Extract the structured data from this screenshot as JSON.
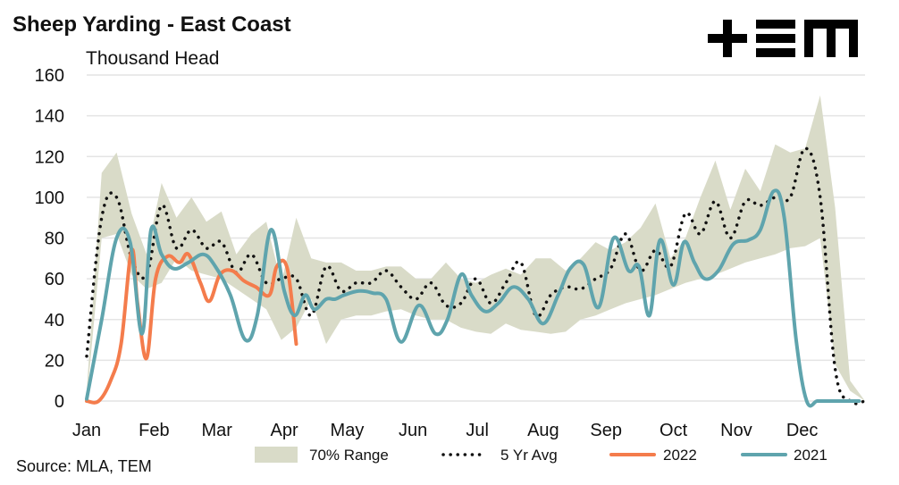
{
  "header": {
    "title": "Sheep Yarding - East Coast",
    "subtitle": "Thousand Head",
    "source": "Source: MLA, TEM",
    "logo_text": "+ΞM"
  },
  "colors": {
    "range": "#d9dbc8",
    "avg": "#111111",
    "y2022": "#f47c4c",
    "y2021": "#5fa4ad",
    "grid": "#e4e4e4"
  },
  "chart_data": {
    "type": "line",
    "title": "Sheep Yarding - East Coast",
    "ylabel": "Thousand Head",
    "xlabel": "",
    "ylim": [
      0,
      160
    ],
    "xlim": [
      0,
      52
    ],
    "yticks": [
      0,
      20,
      40,
      60,
      80,
      100,
      120,
      140,
      160
    ],
    "grid": true,
    "legend_position": "bottom",
    "month_labels": [
      "Jan",
      "Feb",
      "Mar",
      "Apr",
      "May",
      "Jun",
      "Jul",
      "Aug",
      "Sep",
      "Oct",
      "Nov",
      "Dec"
    ],
    "month_positions": [
      0,
      4.5,
      8.7,
      13.2,
      17.4,
      21.8,
      26.1,
      30.5,
      34.7,
      39.2,
      43.4,
      47.8
    ],
    "series": [
      {
        "name": "70% Range",
        "style": "band",
        "x": [
          0,
          1,
          2,
          3,
          4,
          5,
          6,
          7,
          8,
          9,
          10,
          11,
          12,
          13,
          14,
          15,
          16,
          17,
          18,
          19,
          20,
          21,
          22,
          23,
          24,
          25,
          26,
          27,
          28,
          29,
          30,
          31,
          32,
          33,
          34,
          35,
          36,
          37,
          38,
          39,
          40,
          41,
          42,
          43,
          44,
          45,
          46,
          47,
          48,
          49,
          50,
          51,
          52
        ],
        "lower": [
          0,
          80,
          82,
          62,
          55,
          58,
          70,
          64,
          62,
          60,
          55,
          50,
          45,
          30,
          36,
          50,
          28,
          40,
          42,
          42,
          44,
          45,
          42,
          40,
          40,
          36,
          34,
          33,
          38,
          35,
          34,
          33,
          34,
          40,
          42,
          45,
          48,
          50,
          52,
          55,
          58,
          60,
          62,
          65,
          68,
          70,
          72,
          75,
          76,
          80,
          18,
          5,
          0
        ],
        "upper": [
          5,
          112,
          122,
          92,
          72,
          107,
          90,
          100,
          88,
          93,
          72,
          82,
          88,
          58,
          90,
          70,
          68,
          68,
          64,
          64,
          66,
          66,
          60,
          60,
          68,
          60,
          58,
          62,
          65,
          62,
          70,
          70,
          64,
          70,
          78,
          74,
          78,
          85,
          97,
          70,
          80,
          100,
          118,
          94,
          114,
          103,
          126,
          122,
          124,
          150,
          95,
          10,
          0
        ]
      },
      {
        "name": "5 Yr Avg",
        "style": "dotted",
        "x": [
          0,
          1,
          2,
          3,
          4,
          5,
          6,
          7,
          8,
          9,
          10,
          11,
          12,
          13,
          14,
          15,
          16,
          17,
          18,
          19,
          20,
          21,
          22,
          23,
          24,
          25,
          26,
          27,
          28,
          29,
          30,
          31,
          32,
          33,
          34,
          35,
          36,
          37,
          38,
          39,
          40,
          41,
          42,
          43,
          44,
          45,
          46,
          47,
          48,
          49,
          50,
          51,
          52
        ],
        "values": [
          22,
          90,
          100,
          70,
          62,
          96,
          75,
          84,
          75,
          78,
          63,
          72,
          58,
          60,
          60,
          42,
          66,
          54,
          58,
          58,
          64,
          56,
          50,
          58,
          47,
          48,
          60,
          48,
          58,
          68,
          42,
          52,
          56,
          55,
          60,
          65,
          82,
          64,
          74,
          66,
          92,
          82,
          98,
          80,
          98,
          96,
          100,
          100,
          124,
          100,
          16,
          0,
          0
        ]
      },
      {
        "name": "2022",
        "style": "solid",
        "x": [
          0,
          0.8,
          1.6,
          2.3,
          3.0,
          3.4,
          4.0,
          4.6,
          5.4,
          6.2,
          6.8,
          7.6,
          8.2,
          8.9,
          9.7,
          10.5,
          11.3,
          12.2,
          12.7,
          13.4,
          14.0
        ],
        "values": [
          0,
          0,
          10,
          28,
          74,
          48,
          21,
          60,
          71,
          68,
          72,
          58,
          49,
          62,
          64,
          59,
          56,
          52,
          66,
          65,
          28
        ]
      },
      {
        "name": "2021",
        "style": "solid",
        "x": [
          0,
          1,
          2,
          2.9,
          3.7,
          4.3,
          5.0,
          5.8,
          6.8,
          7.8,
          8.6,
          9.6,
          10.6,
          11.4,
          12.3,
          13.2,
          13.9,
          14.6,
          15.2,
          16.0,
          16.6,
          17.2,
          18.2,
          19.1,
          20.0,
          21.0,
          22.2,
          23.3,
          24.1,
          25.0,
          25.7,
          26.6,
          27.5,
          28.5,
          29.5,
          30.5,
          31.5,
          32.3,
          33.2,
          34.2,
          35.2,
          36.2,
          36.9,
          37.6,
          38.3,
          39.2,
          39.9,
          40.6,
          41.3,
          42.2,
          43.2,
          44.2,
          45.0,
          45.9,
          46.6,
          47.4,
          48.1,
          48.8,
          49.4,
          50.1,
          50.6,
          51.2,
          51.6
        ],
        "values": [
          1,
          40,
          80,
          78,
          33,
          84,
          72,
          65,
          68,
          72,
          66,
          52,
          30,
          42,
          84,
          54,
          42,
          52,
          45,
          50,
          50,
          52,
          54,
          53,
          50,
          29,
          47,
          33,
          40,
          62,
          52,
          44,
          48,
          56,
          50,
          38,
          52,
          65,
          67,
          46,
          80,
          64,
          66,
          42,
          79,
          57,
          78,
          68,
          60,
          64,
          77,
          79,
          84,
          103,
          90,
          30,
          0,
          0,
          0,
          0,
          0,
          0,
          0
        ]
      }
    ]
  }
}
